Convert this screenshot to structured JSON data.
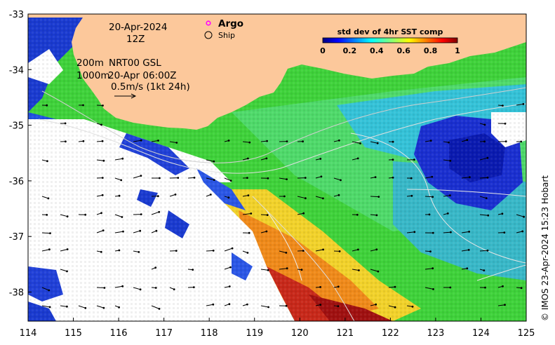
{
  "map": {
    "date": "20-Apr-2024",
    "hour": "12Z",
    "legend_argo": "Argo",
    "legend_ship": "Ship",
    "depth_200": "200m",
    "depth_1000": "1000m",
    "product": "NRT00 GSL",
    "product_time": "20-Apr 06:00Z",
    "scale_label": "0.5m/s (1kt 24h)",
    "credit": "© IMOS 23-Apr-2024 15:23 Hobart",
    "colorbar": {
      "title": "std dev of 4hr SST comp",
      "ticks": [
        "0",
        "0.2",
        "0.4",
        "0.6",
        "0.8",
        "1"
      ]
    },
    "lon_ticks": [
      "114",
      "115",
      "116",
      "117",
      "118",
      "119",
      "120",
      "121",
      "122",
      "123",
      "124",
      "125"
    ],
    "lat_ticks": [
      "-33",
      "-34",
      "-35",
      "-36",
      "-37",
      "-38"
    ],
    "colors": {
      "land": "#fcc89b",
      "cloud": "#ffffff",
      "argo_marker": "#ff00ff"
    }
  }
}
